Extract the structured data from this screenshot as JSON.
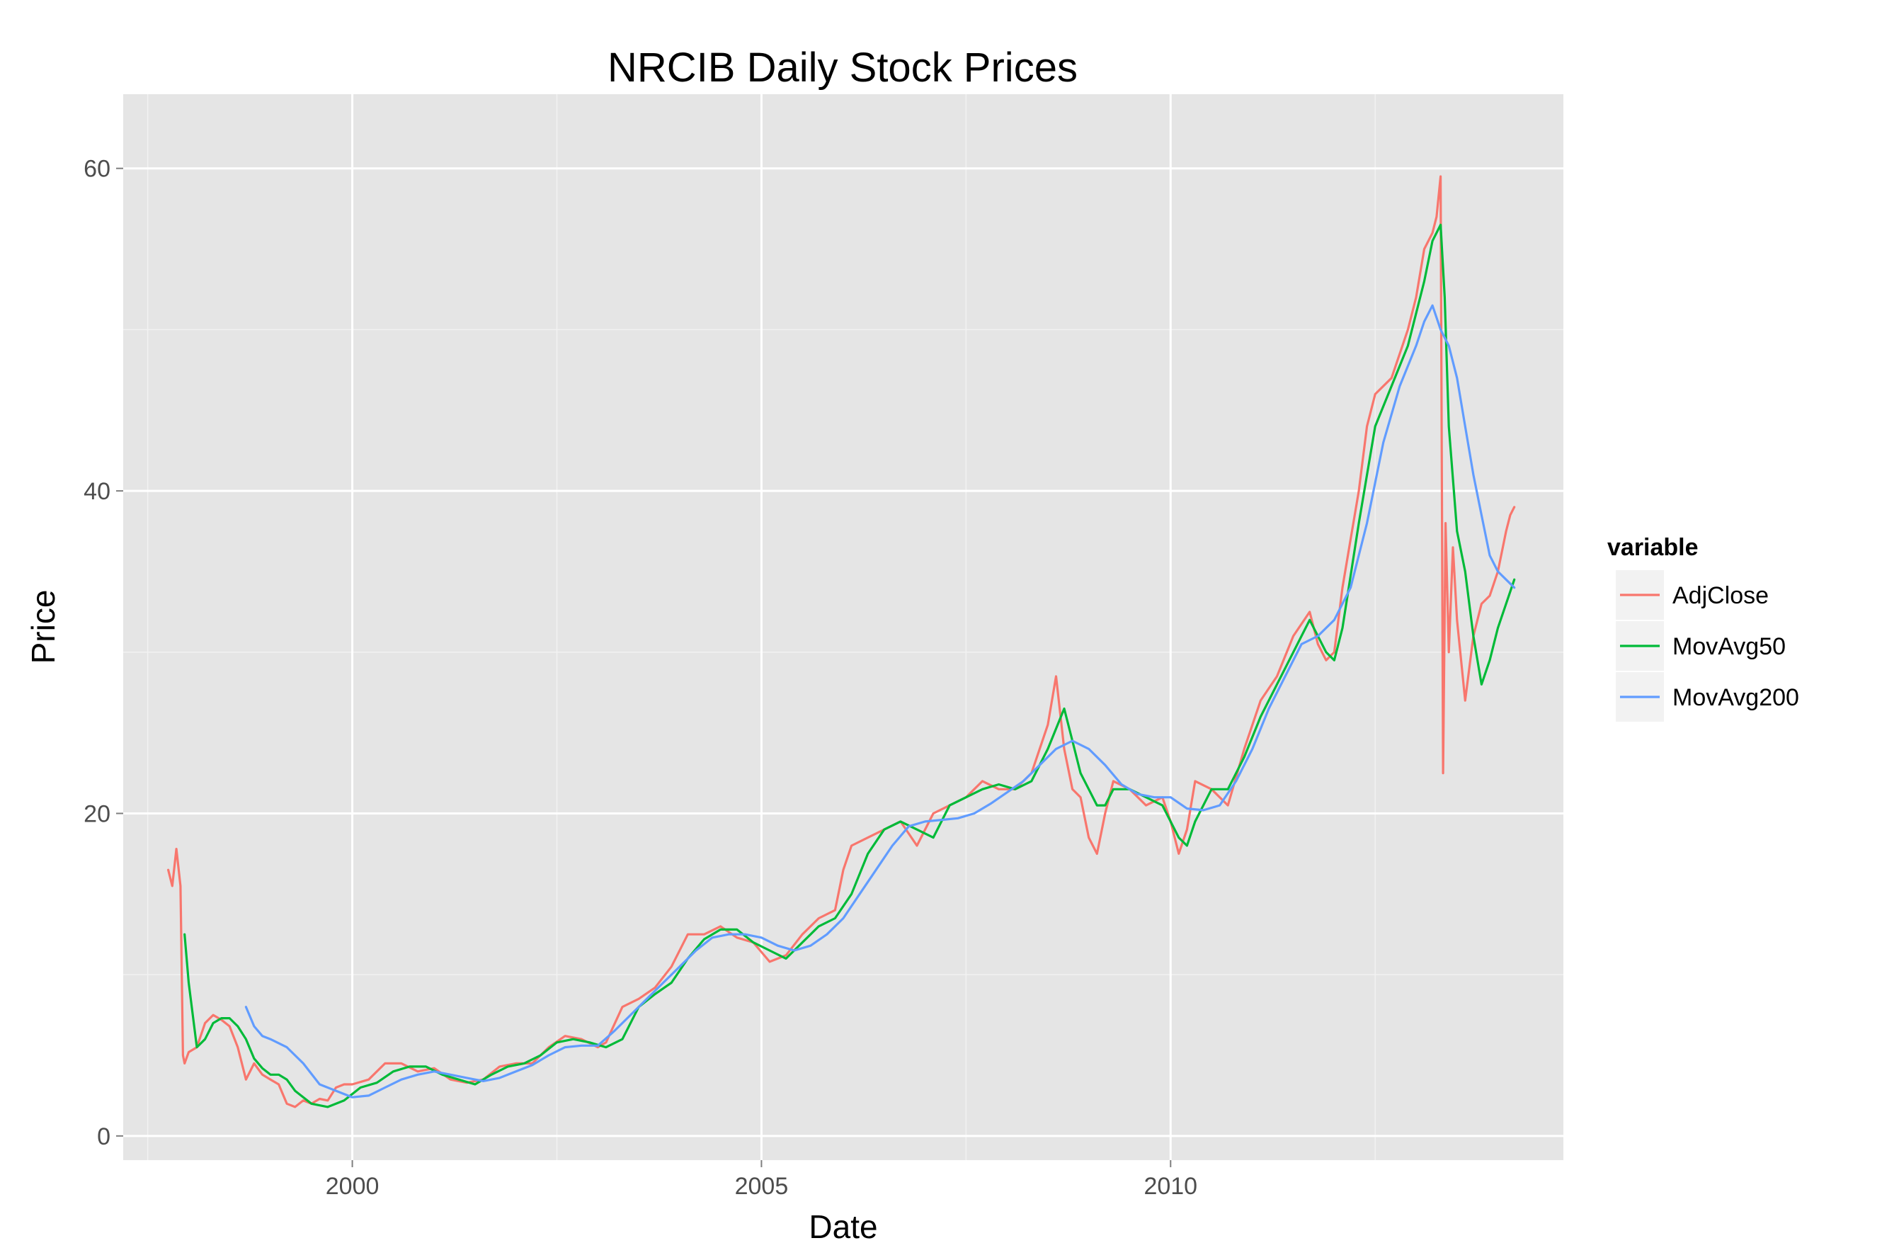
{
  "chart_data": {
    "type": "line",
    "title": "NRCIB Daily Stock Prices",
    "xlabel": "Date",
    "ylabel": "Price",
    "xlim": [
      1997.2,
      2014.8
    ],
    "ylim": [
      -1.5,
      64.6
    ],
    "x_ticks": [
      2000,
      2005,
      2010
    ],
    "x_tick_labels": [
      "2000",
      "2005",
      "2010"
    ],
    "y_ticks": [
      0,
      20,
      40,
      60
    ],
    "y_tick_labels": [
      "0",
      "20",
      "40",
      "60"
    ],
    "grid": true,
    "legend": {
      "title": "variable",
      "placement": "right"
    },
    "series": [
      {
        "name": "AdjClose",
        "color": "#f8766d",
        "x": [
          1997.75,
          1997.8,
          1997.85,
          1997.9,
          1997.93,
          1997.95,
          1998.0,
          1998.1,
          1998.2,
          1998.3,
          1998.4,
          1998.5,
          1998.6,
          1998.7,
          1998.8,
          1998.9,
          1999.0,
          1999.1,
          1999.2,
          1999.3,
          1999.4,
          1999.5,
          1999.6,
          1999.7,
          1999.8,
          1999.9,
          2000.0,
          2000.2,
          2000.4,
          2000.6,
          2000.8,
          2001.0,
          2001.2,
          2001.4,
          2001.6,
          2001.8,
          2002.0,
          2002.2,
          2002.4,
          2002.6,
          2002.8,
          2003.0,
          2003.1,
          2003.3,
          2003.5,
          2003.7,
          2003.9,
          2004.1,
          2004.3,
          2004.5,
          2004.7,
          2004.9,
          2005.1,
          2005.3,
          2005.5,
          2005.7,
          2005.9,
          2006.0,
          2006.1,
          2006.3,
          2006.5,
          2006.7,
          2006.9,
          2007.1,
          2007.3,
          2007.5,
          2007.7,
          2007.9,
          2008.1,
          2008.3,
          2008.5,
          2008.6,
          2008.7,
          2008.8,
          2008.9,
          2009.0,
          2009.1,
          2009.2,
          2009.3,
          2009.5,
          2009.7,
          2009.9,
          2010.0,
          2010.1,
          2010.2,
          2010.3,
          2010.5,
          2010.7,
          2010.9,
          2011.1,
          2011.3,
          2011.5,
          2011.7,
          2011.8,
          2011.9,
          2012.0,
          2012.1,
          2012.2,
          2012.3,
          2012.4,
          2012.5,
          2012.7,
          2012.9,
          2013.0,
          2013.1,
          2013.2,
          2013.25,
          2013.3,
          2013.33,
          2013.36,
          2013.4,
          2013.45,
          2013.5,
          2013.6,
          2013.7,
          2013.8,
          2013.9,
          2014.0,
          2014.1,
          2014.15,
          2014.2
        ],
        "values": [
          16.5,
          15.5,
          17.8,
          15.5,
          5.0,
          4.5,
          5.2,
          5.5,
          7.0,
          7.5,
          7.2,
          6.8,
          5.5,
          3.5,
          4.5,
          3.8,
          3.5,
          3.2,
          2.0,
          1.8,
          2.2,
          2.0,
          2.3,
          2.2,
          3.0,
          3.2,
          3.2,
          3.5,
          4.5,
          4.5,
          4.0,
          4.2,
          3.5,
          3.3,
          3.5,
          4.3,
          4.5,
          4.5,
          5.5,
          6.2,
          6.0,
          5.5,
          5.8,
          8.0,
          8.5,
          9.2,
          10.5,
          12.5,
          12.5,
          13.0,
          12.3,
          12.0,
          10.8,
          11.2,
          12.5,
          13.5,
          14.0,
          16.5,
          18.0,
          18.5,
          19.0,
          19.5,
          18.0,
          20.0,
          20.5,
          21.0,
          22.0,
          21.5,
          21.5,
          22.5,
          25.5,
          28.5,
          24.0,
          21.5,
          21.0,
          18.5,
          17.5,
          20.0,
          22.0,
          21.5,
          20.5,
          21.0,
          19.5,
          17.5,
          19.0,
          22.0,
          21.5,
          20.5,
          24.0,
          27.0,
          28.5,
          31.0,
          32.5,
          30.5,
          29.5,
          30.0,
          34.0,
          37.0,
          40.0,
          44.0,
          46.0,
          47.0,
          50.0,
          52.0,
          55.0,
          56.0,
          57.0,
          59.5,
          22.5,
          38.0,
          30.0,
          36.5,
          32.0,
          27.0,
          31.0,
          33.0,
          33.5,
          35.0,
          37.5,
          38.5,
          39.0
        ]
      },
      {
        "name": "MovAvg50",
        "color": "#00ba38",
        "x": [
          1997.95,
          1998.0,
          1998.1,
          1998.2,
          1998.3,
          1998.4,
          1998.5,
          1998.6,
          1998.7,
          1998.8,
          1998.9,
          1999.0,
          1999.1,
          1999.2,
          1999.3,
          1999.5,
          1999.7,
          1999.9,
          2000.1,
          2000.3,
          2000.5,
          2000.7,
          2000.9,
          2001.1,
          2001.3,
          2001.5,
          2001.7,
          2001.9,
          2002.1,
          2002.3,
          2002.5,
          2002.7,
          2002.9,
          2003.1,
          2003.3,
          2003.5,
          2003.7,
          2003.9,
          2004.1,
          2004.3,
          2004.5,
          2004.7,
          2004.9,
          2005.1,
          2005.3,
          2005.5,
          2005.7,
          2005.9,
          2006.1,
          2006.3,
          2006.5,
          2006.7,
          2006.9,
          2007.1,
          2007.3,
          2007.5,
          2007.7,
          2007.9,
          2008.1,
          2008.3,
          2008.5,
          2008.7,
          2008.8,
          2008.9,
          2009.0,
          2009.1,
          2009.2,
          2009.3,
          2009.5,
          2009.7,
          2009.9,
          2010.1,
          2010.2,
          2010.3,
          2010.5,
          2010.7,
          2010.9,
          2011.1,
          2011.3,
          2011.5,
          2011.7,
          2011.9,
          2012.0,
          2012.1,
          2012.3,
          2012.5,
          2012.7,
          2012.9,
          2013.1,
          2013.2,
          2013.3,
          2013.35,
          2013.4,
          2013.5,
          2013.6,
          2013.7,
          2013.8,
          2013.9,
          2014.0,
          2014.1,
          2014.2
        ],
        "values": [
          12.5,
          9.5,
          5.5,
          6.0,
          7.0,
          7.3,
          7.3,
          6.8,
          6.0,
          4.8,
          4.2,
          3.8,
          3.8,
          3.5,
          2.8,
          2.0,
          1.8,
          2.2,
          3.0,
          3.3,
          4.0,
          4.3,
          4.3,
          3.8,
          3.5,
          3.2,
          3.8,
          4.3,
          4.5,
          5.0,
          5.8,
          6.0,
          5.8,
          5.5,
          6.0,
          8.0,
          8.8,
          9.5,
          11.0,
          12.2,
          12.8,
          12.8,
          12.0,
          11.5,
          11.0,
          12.0,
          13.0,
          13.5,
          15.0,
          17.5,
          19.0,
          19.5,
          19.0,
          18.5,
          20.5,
          21.0,
          21.5,
          21.8,
          21.5,
          22.0,
          24.0,
          26.5,
          24.5,
          22.5,
          21.5,
          20.5,
          20.5,
          21.5,
          21.5,
          21.0,
          20.5,
          18.5,
          18.0,
          19.5,
          21.5,
          21.5,
          23.5,
          26.0,
          28.0,
          30.0,
          32.0,
          30.0,
          29.5,
          31.5,
          38.0,
          44.0,
          46.5,
          49.0,
          53.0,
          55.5,
          56.5,
          52.0,
          44.0,
          37.5,
          35.0,
          31.0,
          28.0,
          29.5,
          31.5,
          33.0,
          34.5
        ]
      },
      {
        "name": "MovAvg200",
        "color": "#619cff",
        "x": [
          1998.7,
          1998.8,
          1998.9,
          1999.0,
          1999.2,
          1999.4,
          1999.6,
          1999.8,
          2000.0,
          2000.2,
          2000.4,
          2000.6,
          2000.8,
          2001.0,
          2001.2,
          2001.4,
          2001.6,
          2001.8,
          2002.0,
          2002.2,
          2002.4,
          2002.6,
          2002.8,
          2003.0,
          2003.2,
          2003.4,
          2003.6,
          2003.8,
          2004.0,
          2004.2,
          2004.4,
          2004.6,
          2004.8,
          2005.0,
          2005.2,
          2005.4,
          2005.6,
          2005.8,
          2006.0,
          2006.2,
          2006.4,
          2006.6,
          2006.8,
          2007.0,
          2007.2,
          2007.4,
          2007.6,
          2007.8,
          2008.0,
          2008.2,
          2008.4,
          2008.6,
          2008.8,
          2009.0,
          2009.2,
          2009.4,
          2009.6,
          2009.8,
          2010.0,
          2010.2,
          2010.4,
          2010.6,
          2010.8,
          2011.0,
          2011.2,
          2011.4,
          2011.6,
          2011.8,
          2012.0,
          2012.2,
          2012.4,
          2012.6,
          2012.8,
          2013.0,
          2013.1,
          2013.2,
          2013.3,
          2013.4,
          2013.5,
          2013.6,
          2013.7,
          2013.8,
          2013.9,
          2014.0,
          2014.1,
          2014.2
        ],
        "values": [
          8.0,
          6.8,
          6.2,
          6.0,
          5.5,
          4.5,
          3.2,
          2.8,
          2.4,
          2.5,
          3.0,
          3.5,
          3.8,
          4.0,
          3.8,
          3.6,
          3.4,
          3.6,
          4.0,
          4.4,
          5.0,
          5.5,
          5.6,
          5.6,
          6.5,
          7.5,
          8.5,
          9.5,
          10.5,
          11.5,
          12.3,
          12.5,
          12.5,
          12.3,
          11.8,
          11.5,
          11.8,
          12.5,
          13.5,
          15.0,
          16.5,
          18.0,
          19.2,
          19.5,
          19.6,
          19.7,
          20.0,
          20.6,
          21.3,
          22.0,
          23.0,
          24.0,
          24.5,
          24.0,
          23.0,
          21.8,
          21.2,
          21.0,
          21.0,
          20.3,
          20.2,
          20.5,
          22.0,
          24.0,
          26.5,
          28.5,
          30.5,
          31.0,
          32.0,
          34.0,
          38.0,
          43.0,
          46.5,
          49.0,
          50.5,
          51.5,
          50.0,
          49.0,
          47.0,
          44.0,
          41.0,
          38.5,
          36.0,
          35.0,
          34.5,
          34.0
        ]
      }
    ]
  }
}
